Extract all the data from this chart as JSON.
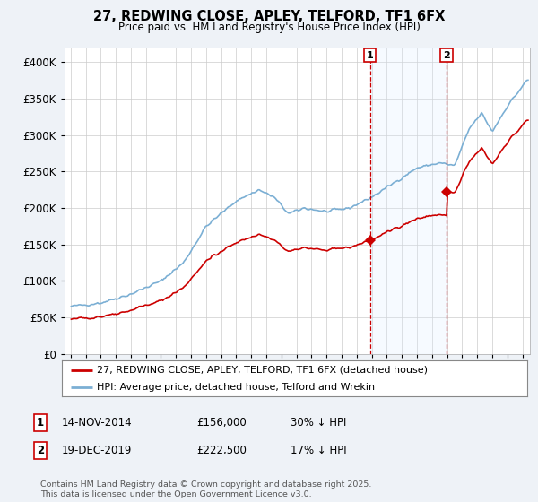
{
  "title": "27, REDWING CLOSE, APLEY, TELFORD, TF1 6FX",
  "subtitle": "Price paid vs. HM Land Registry's House Price Index (HPI)",
  "legend_line1": "27, REDWING CLOSE, APLEY, TELFORD, TF1 6FX (detached house)",
  "legend_line2": "HPI: Average price, detached house, Telford and Wrekin",
  "annotation1_label": "1",
  "annotation1_date": "14-NOV-2014",
  "annotation1_price": "£156,000",
  "annotation1_hpi": "30% ↓ HPI",
  "annotation2_label": "2",
  "annotation2_date": "19-DEC-2019",
  "annotation2_price": "£222,500",
  "annotation2_hpi": "17% ↓ HPI",
  "footnote": "Contains HM Land Registry data © Crown copyright and database right 2025.\nThis data is licensed under the Open Government Licence v3.0.",
  "hpi_color": "#7bafd4",
  "price_color": "#cc0000",
  "annotation_color": "#cc0000",
  "vline_color": "#cc0000",
  "shade_color": "#ddeeff",
  "ylim": [
    0,
    420000
  ],
  "yticks": [
    0,
    50000,
    100000,
    150000,
    200000,
    250000,
    300000,
    350000,
    400000
  ],
  "background_color": "#eef2f7",
  "plot_bg_color": "#ffffff",
  "sale1_x": 2014.876,
  "sale1_y": 156000,
  "sale2_x": 2019.962,
  "sale2_y": 222500,
  "xmin": 1994.6,
  "xmax": 2025.5
}
